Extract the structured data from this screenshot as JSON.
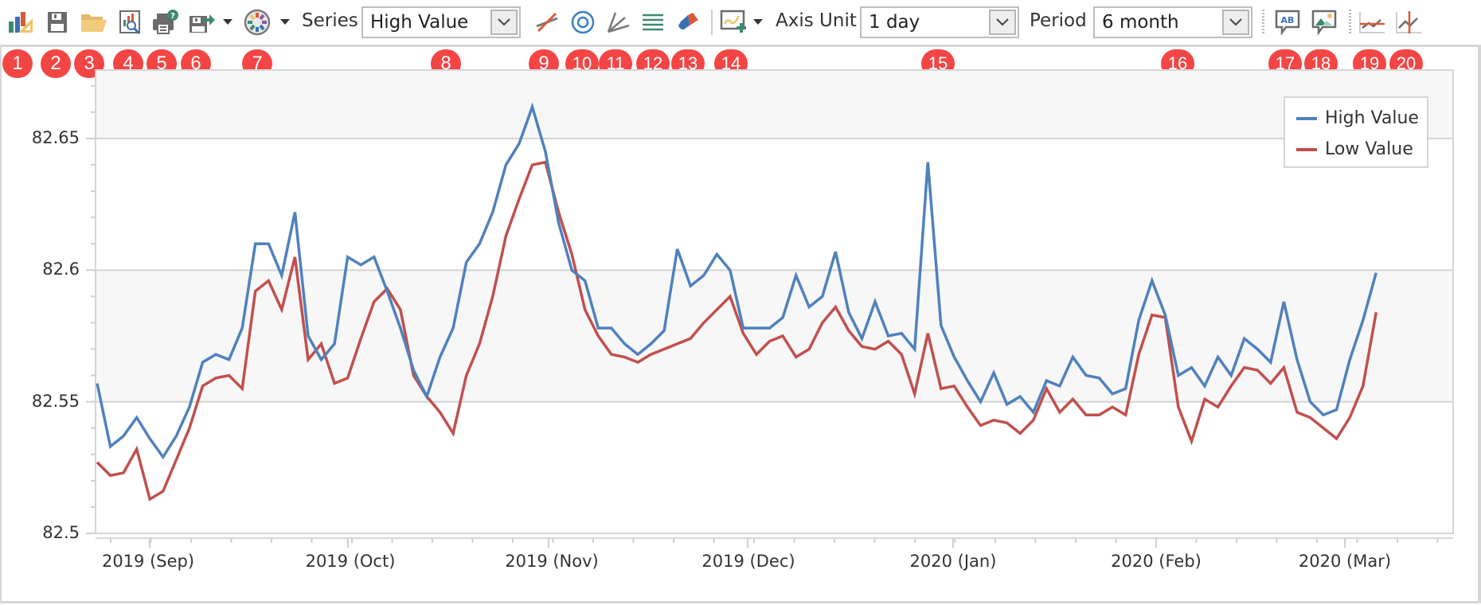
{
  "toolbar": {
    "items": [
      {
        "id": "1",
        "name": "chart-wizard-button",
        "icon": "chart-wizard-icon"
      },
      {
        "id": "2",
        "name": "save-button",
        "icon": "save-icon"
      },
      {
        "id": "3",
        "name": "open-button",
        "icon": "open-folder-icon"
      },
      {
        "id": "4",
        "name": "print-preview-button",
        "icon": "print-preview-icon"
      },
      {
        "id": "5",
        "name": "print-button",
        "icon": "print-icon"
      },
      {
        "id": "6",
        "name": "export-button",
        "icon": "export-icon"
      },
      {
        "id": "7",
        "name": "palette-button",
        "icon": "palette-icon"
      },
      {
        "id": "8",
        "name": "series-combo"
      },
      {
        "id": "9",
        "name": "trend-line-button",
        "icon": "trend-line-icon"
      },
      {
        "id": "10",
        "name": "fibonacci-circle-button",
        "icon": "fibonacci-circle-icon"
      },
      {
        "id": "11",
        "name": "fan-lines-button",
        "icon": "fan-lines-icon"
      },
      {
        "id": "12",
        "name": "retracement-button",
        "icon": "retracement-icon"
      },
      {
        "id": "13",
        "name": "erase-button",
        "icon": "eraser-icon"
      },
      {
        "id": "14",
        "name": "add-indicator-button",
        "icon": "add-indicator-icon"
      },
      {
        "id": "15",
        "name": "axis-unit-combo"
      },
      {
        "id": "16",
        "name": "period-combo"
      },
      {
        "id": "17",
        "name": "text-annotation-button",
        "icon": "text-annotation-icon"
      },
      {
        "id": "18",
        "name": "image-annotation-button",
        "icon": "image-annotation-icon"
      },
      {
        "id": "19",
        "name": "horizontal-line-button",
        "icon": "horizontal-line-icon"
      },
      {
        "id": "20",
        "name": "vertical-line-button",
        "icon": "vertical-line-icon"
      }
    ],
    "series_label": "Series",
    "series_value": "High Value",
    "axis_unit_label": "Axis Unit",
    "axis_unit_value": "1 day",
    "period_label": "Period",
    "period_value": "6 month"
  },
  "badges": [
    "1",
    "2",
    "3",
    "4",
    "5",
    "6",
    "7",
    "8",
    "9",
    "10",
    "11",
    "12",
    "13",
    "14",
    "15",
    "16",
    "17",
    "18",
    "19",
    "20"
  ],
  "colors": {
    "high": "#4f81bd",
    "low": "#c0504d",
    "badge": "#f44545",
    "grid": "#d4d4d4",
    "band": "#f7f7f7"
  },
  "chart_data": {
    "type": "line",
    "title": "",
    "xlabel": "",
    "ylabel": "",
    "ylim": [
      82.5,
      82.68
    ],
    "yticks": [
      "82.65",
      "82.6",
      "82.55",
      "82.5"
    ],
    "xticks": [
      "2019 (Sep)",
      "2019 (Oct)",
      "2019 (Nov)",
      "2019 (Dec)",
      "2020 (Jan)",
      "2020 (Feb)",
      "2020 (Mar)"
    ],
    "grid": true,
    "legend_position": "top-right",
    "legend": [
      "High Value",
      "Low Value"
    ],
    "x_start": "2019-08-24",
    "x_step_days_note": "x values are day offsets from 2019-08-24",
    "x": [
      0,
      2,
      4,
      6,
      8,
      10,
      12,
      14,
      16,
      18,
      20,
      22,
      24,
      26,
      28,
      30,
      32,
      34,
      36,
      38,
      40,
      42,
      44,
      46,
      48,
      50,
      52,
      54,
      56,
      58,
      60,
      62,
      64,
      66,
      68,
      70,
      72,
      74,
      76,
      78,
      80,
      82,
      84,
      86,
      88,
      90,
      92,
      94,
      96,
      98,
      100,
      102,
      104,
      106,
      108,
      110,
      112,
      114,
      116,
      118,
      120,
      122,
      124,
      126,
      128,
      130,
      132,
      134,
      136,
      138,
      140,
      142,
      144,
      146,
      148,
      150,
      152,
      154,
      156,
      158,
      160,
      162,
      164,
      166,
      168,
      170,
      172,
      174,
      176,
      178,
      180,
      182,
      184,
      186,
      188,
      190,
      192,
      194
    ],
    "series": [
      {
        "name": "High Value",
        "values": [
          82.557,
          82.533,
          82.537,
          82.544,
          82.536,
          82.529,
          82.537,
          82.548,
          82.565,
          82.568,
          82.566,
          82.578,
          82.61,
          82.61,
          82.598,
          82.622,
          82.575,
          82.566,
          82.572,
          82.605,
          82.602,
          82.605,
          82.592,
          82.578,
          82.562,
          82.552,
          82.567,
          82.578,
          82.603,
          82.61,
          82.622,
          82.64,
          82.648,
          82.662,
          82.645,
          82.618,
          82.6,
          82.596,
          82.578,
          82.578,
          82.572,
          82.568,
          82.572,
          82.577,
          82.608,
          82.594,
          82.598,
          82.606,
          82.6,
          82.578,
          82.578,
          82.578,
          82.582,
          82.598,
          82.586,
          82.59,
          82.607,
          82.584,
          82.574,
          82.588,
          82.575,
          82.576,
          82.57,
          82.641,
          82.579,
          82.567,
          82.558,
          82.55,
          82.561,
          82.549,
          82.552,
          82.546,
          82.558,
          82.556,
          82.567,
          82.56,
          82.559,
          82.553,
          82.555,
          82.581,
          82.596,
          82.583,
          82.56,
          82.563,
          82.556,
          82.567,
          82.56,
          82.574,
          82.57,
          82.565,
          82.588,
          82.566,
          82.55,
          82.545,
          82.547,
          82.566,
          82.581,
          82.599
        ]
      },
      {
        "name": "Low Value",
        "values": [
          82.527,
          82.522,
          82.523,
          82.532,
          82.513,
          82.516,
          82.528,
          82.54,
          82.556,
          82.559,
          82.56,
          82.555,
          82.592,
          82.596,
          82.585,
          82.605,
          82.566,
          82.572,
          82.557,
          82.559,
          82.574,
          82.588,
          82.593,
          82.585,
          82.56,
          82.552,
          82.546,
          82.538,
          82.56,
          82.572,
          82.59,
          82.613,
          82.627,
          82.64,
          82.641,
          82.622,
          82.606,
          82.585,
          82.575,
          82.568,
          82.567,
          82.565,
          82.568,
          82.57,
          82.572,
          82.574,
          82.58,
          82.585,
          82.59,
          82.576,
          82.568,
          82.573,
          82.575,
          82.567,
          82.57,
          82.58,
          82.586,
          82.577,
          82.571,
          82.57,
          82.573,
          82.568,
          82.553,
          82.576,
          82.555,
          82.556,
          82.548,
          82.541,
          82.543,
          82.542,
          82.538,
          82.543,
          82.555,
          82.546,
          82.551,
          82.545,
          82.545,
          82.548,
          82.545,
          82.568,
          82.583,
          82.582,
          82.548,
          82.535,
          82.551,
          82.548,
          82.556,
          82.563,
          82.562,
          82.557,
          82.563,
          82.546,
          82.544,
          82.54,
          82.536,
          82.544,
          82.556,
          82.584
        ]
      }
    ]
  }
}
